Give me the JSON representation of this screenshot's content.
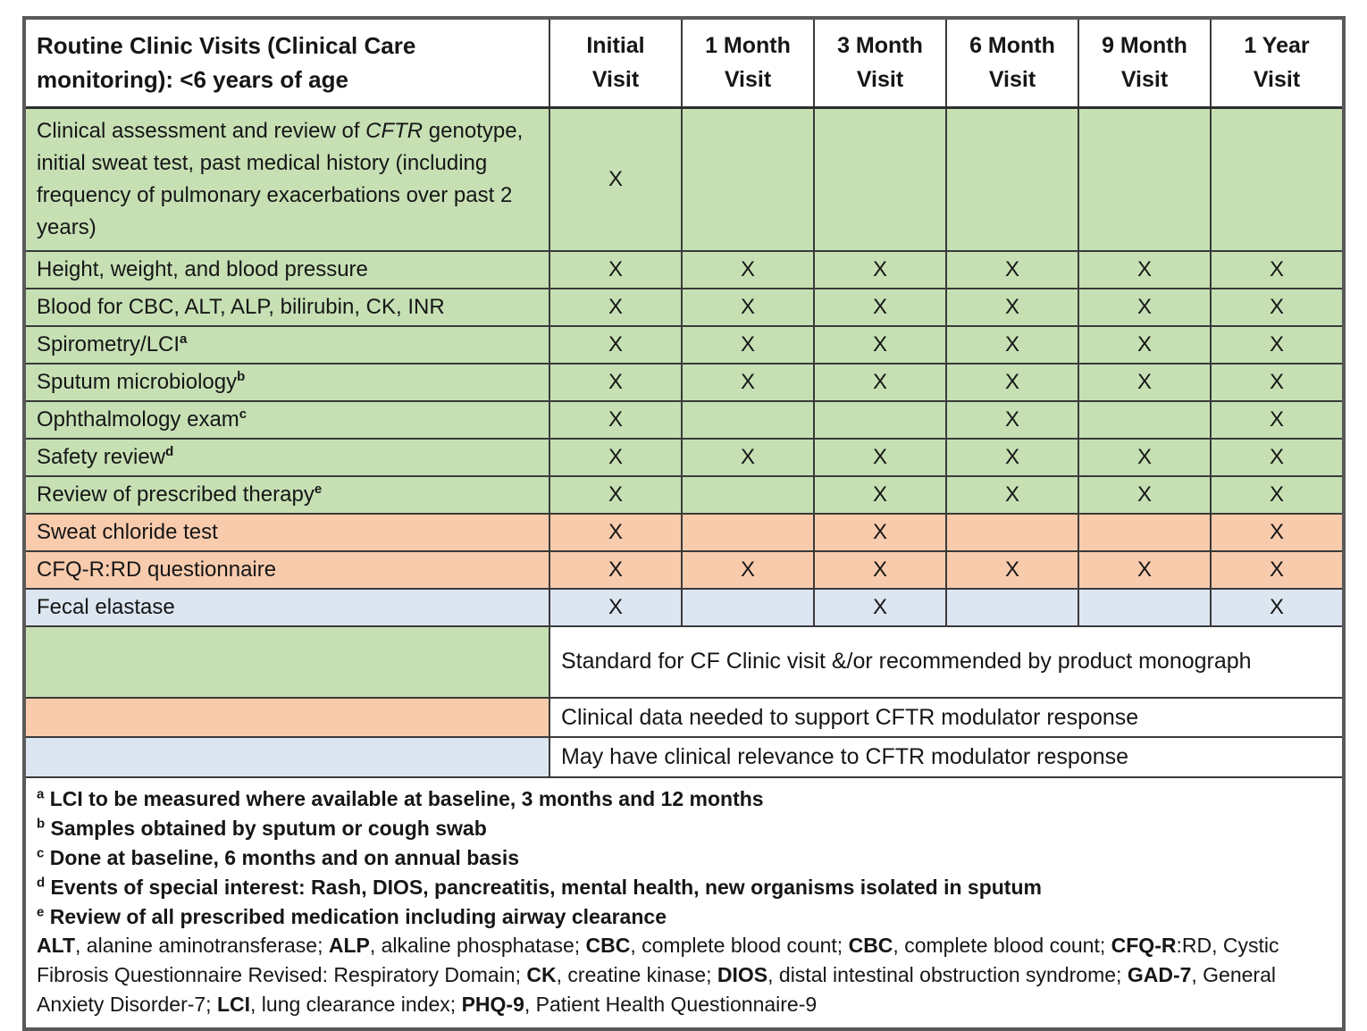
{
  "colors": {
    "standard_green": "#c6e0b4",
    "clinical_orange": "#f8cbad",
    "relevance_blue": "#dce6f1",
    "grid_line": "#3a3a3a",
    "outer_border": "#595959",
    "text": "#161616"
  },
  "table": {
    "title": "Routine Clinic Visits (Clinical Care monitoring): <6 years of age",
    "columns": [
      "Initial Visit",
      "1 Month Visit",
      "3 Month Visit",
      "6 Month Visit",
      "9 Month Visit",
      "1 Year Visit"
    ],
    "mark_symbol": "X",
    "rows": [
      {
        "tall": true,
        "color": "green",
        "parts": [
          {
            "t": "Clinical assessment and review of "
          },
          {
            "t": "CFTR",
            "s": "i"
          },
          {
            "t": " genotype, initial sweat test, past medical history (including frequency of pulmonary exacerbations over past 2 years)"
          }
        ],
        "marks": [
          "X",
          "",
          "",
          "",
          "",
          ""
        ]
      },
      {
        "color": "green",
        "parts": [
          {
            "t": "Height, weight, and blood pressure"
          }
        ],
        "marks": [
          "X",
          "X",
          "X",
          "X",
          "X",
          "X"
        ]
      },
      {
        "color": "green",
        "parts": [
          {
            "t": "Blood for CBC, ALT, ALP, bilirubin, CK, INR"
          }
        ],
        "marks": [
          "X",
          "X",
          "X",
          "X",
          "X",
          "X"
        ]
      },
      {
        "color": "green",
        "parts": [
          {
            "t": "Spirometry/LCI"
          },
          {
            "t": "a",
            "s": "sup"
          }
        ],
        "marks": [
          "X",
          "X",
          "X",
          "X",
          "X",
          "X"
        ]
      },
      {
        "color": "green",
        "parts": [
          {
            "t": "Sputum microbiology"
          },
          {
            "t": "b",
            "s": "sup"
          }
        ],
        "marks": [
          "X",
          "X",
          "X",
          "X",
          "X",
          "X"
        ]
      },
      {
        "color": "green",
        "parts": [
          {
            "t": "Ophthalmology exam"
          },
          {
            "t": "c",
            "s": "sup"
          }
        ],
        "marks": [
          "X",
          "",
          "",
          "X",
          "",
          "X"
        ]
      },
      {
        "color": "green",
        "parts": [
          {
            "t": "Safety review"
          },
          {
            "t": "d",
            "s": "sup"
          }
        ],
        "marks": [
          "X",
          "X",
          "X",
          "X",
          "X",
          "X"
        ]
      },
      {
        "color": "green",
        "parts": [
          {
            "t": "Review of prescribed therapy"
          },
          {
            "t": "e",
            "s": "sup"
          }
        ],
        "marks": [
          "X",
          "",
          "X",
          "X",
          "X",
          "X"
        ]
      },
      {
        "color": "orange",
        "parts": [
          {
            "t": "Sweat chloride test"
          }
        ],
        "marks": [
          "X",
          "",
          "X",
          "",
          "",
          "X"
        ]
      },
      {
        "color": "orange",
        "parts": [
          {
            "t": "CFQ-R:RD questionnaire"
          }
        ],
        "marks": [
          "X",
          "X",
          "X",
          "X",
          "X",
          "X"
        ]
      },
      {
        "color": "blue",
        "parts": [
          {
            "t": "Fecal elastase"
          }
        ],
        "marks": [
          "X",
          "",
          "X",
          "",
          "",
          "X"
        ]
      }
    ],
    "legend": [
      {
        "color": "green",
        "text": "Standard for CF Clinic visit &/or recommended by product monograph"
      },
      {
        "color": "orange",
        "text": "Clinical data needed to support CFTR modulator response"
      },
      {
        "color": "blue",
        "text": "May have clinical relevance to CFTR modulator response"
      }
    ],
    "footnotes": [
      {
        "sup": "a",
        "text": "LCI to be measured where available at baseline, 3 months and 12 months"
      },
      {
        "sup": "b",
        "text": "Samples obtained by sputum or cough swab"
      },
      {
        "sup": "c",
        "text": "Done at baseline, 6 months and on annual basis"
      },
      {
        "sup": "d",
        "text": "Events of special interest: Rash, DIOS, pancreatitis, mental health, new organisms isolated in sputum"
      },
      {
        "sup": "e",
        "text": "Review of all prescribed medication including airway clearance"
      }
    ],
    "abbreviations_parts": [
      {
        "t": "ALT",
        "s": "b"
      },
      {
        "t": ", alanine aminotransferase; "
      },
      {
        "t": "ALP",
        "s": "b"
      },
      {
        "t": ", alkaline phosphatase; "
      },
      {
        "t": "CBC",
        "s": "b"
      },
      {
        "t": ", complete blood count; "
      },
      {
        "t": "CBC",
        "s": "b"
      },
      {
        "t": ", complete blood count; "
      },
      {
        "t": "CFQ-R",
        "s": "b"
      },
      {
        "t": ":RD, Cystic Fibrosis Questionnaire Revised: Respiratory Domain; "
      },
      {
        "t": "CK",
        "s": "b"
      },
      {
        "t": ", creatine kinase; "
      },
      {
        "t": "DIOS",
        "s": "b"
      },
      {
        "t": ", distal intestinal obstruction syndrome; "
      },
      {
        "t": "GAD-7",
        "s": "b"
      },
      {
        "t": ", General Anxiety Disorder-7; "
      },
      {
        "t": "LCI",
        "s": "b"
      },
      {
        "t": ", lung clearance index; "
      },
      {
        "t": "PHQ-9",
        "s": "b"
      },
      {
        "t": ", Patient Health Questionnaire-9"
      }
    ]
  }
}
